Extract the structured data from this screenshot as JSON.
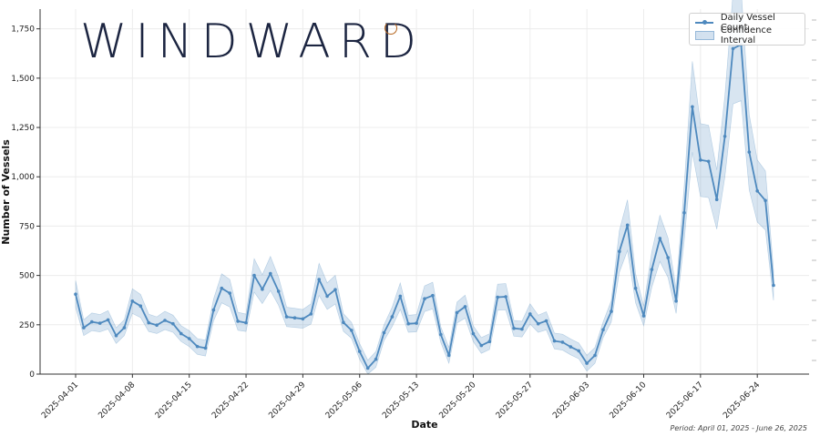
{
  "brand": {
    "name": "WINDWARD"
  },
  "period_text": "Period: April 01, 2025 - June 26, 2025",
  "chart_data": {
    "type": "line",
    "title": "",
    "xlabel": "Date",
    "ylabel": "Number of Vessels",
    "ylim": [
      0,
      1850
    ],
    "yticks": [
      0,
      250,
      500,
      750,
      1000,
      1250,
      1500,
      1750
    ],
    "ytick_labels": [
      "0",
      "250",
      "500",
      "750",
      "1,000",
      "1,250",
      "1,500",
      "1,750"
    ],
    "xtick_labels": [
      "2025-04-01",
      "2025-04-08",
      "2025-04-15",
      "2025-04-22",
      "2025-04-29",
      "2025-05-06",
      "2025-05-13",
      "2025-05-20",
      "2025-05-27",
      "2025-06-03",
      "2025-06-10",
      "2025-06-17",
      "2025-06-24"
    ],
    "xtick_day_index": [
      0,
      7,
      14,
      21,
      28,
      35,
      42,
      49,
      56,
      63,
      70,
      77,
      84
    ],
    "x_days": 86,
    "grid": true,
    "legend": {
      "position": "top-right",
      "entries": [
        "Daily Vessel Count",
        "Confidence Interval"
      ]
    },
    "colors": {
      "line": "#4e89be",
      "band": "#4e89be"
    },
    "series": [
      {
        "name": "Daily Vessel Count",
        "values": [
          405,
          235,
          265,
          258,
          275,
          195,
          235,
          370,
          345,
          260,
          248,
          272,
          255,
          205,
          180,
          140,
          132,
          325,
          435,
          410,
          268,
          260,
          500,
          430,
          510,
          420,
          290,
          285,
          280,
          305,
          480,
          395,
          428,
          262,
          222,
          115,
          30,
          75,
          210,
          290,
          395,
          255,
          258,
          382,
          398,
          200,
          95,
          312,
          342,
          205,
          145,
          165,
          390,
          392,
          232,
          228,
          305,
          255,
          270,
          168,
          162,
          138,
          118,
          55,
          95,
          225,
          318,
          622,
          755,
          435,
          295,
          530,
          688,
          590,
          370,
          818,
          1355,
          1085,
          1078,
          885,
          1205,
          1650,
          1670,
          1125,
          928,
          880,
          450
        ]
      }
    ],
    "confidence_interval": {
      "name": "Confidence Interval",
      "half_width_percent": 17,
      "min_half_width": 40
    }
  }
}
